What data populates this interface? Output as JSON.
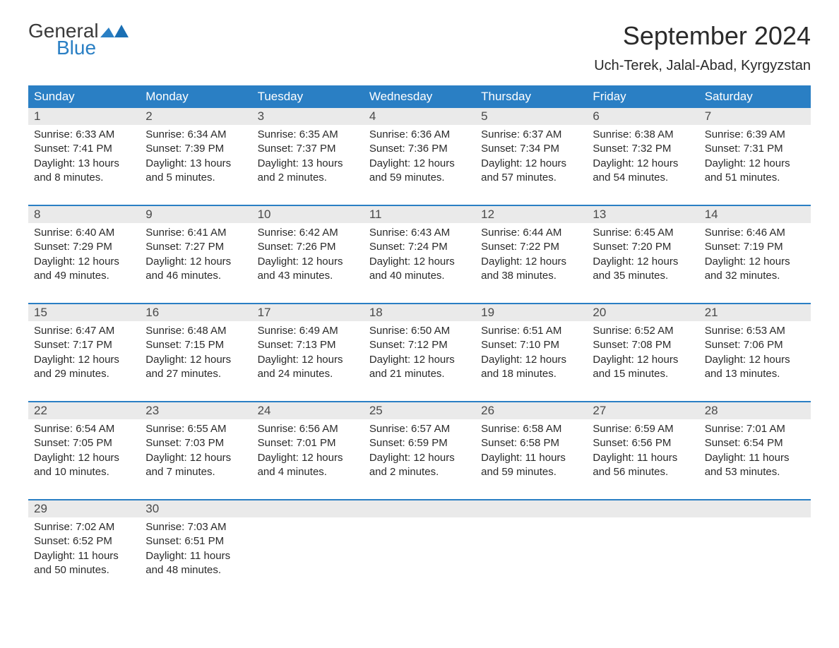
{
  "logo": {
    "text1": "General",
    "text2": "Blue"
  },
  "title": "September 2024",
  "subtitle": "Uch-Terek, Jalal-Abad, Kyrgyzstan",
  "weekdays": [
    "Sunday",
    "Monday",
    "Tuesday",
    "Wednesday",
    "Thursday",
    "Friday",
    "Saturday"
  ],
  "colors": {
    "header_bg": "#2a7fc4",
    "header_text": "#ffffff",
    "daynum_bg": "#eaeaea",
    "week_border": "#2a7fc4",
    "body_text": "#2a2a2a"
  },
  "days": [
    {
      "n": "1",
      "sunrise": "6:33 AM",
      "sunset": "7:41 PM",
      "dl1": "13 hours",
      "dl2": "8 minutes."
    },
    {
      "n": "2",
      "sunrise": "6:34 AM",
      "sunset": "7:39 PM",
      "dl1": "13 hours",
      "dl2": "5 minutes."
    },
    {
      "n": "3",
      "sunrise": "6:35 AM",
      "sunset": "7:37 PM",
      "dl1": "13 hours",
      "dl2": "2 minutes."
    },
    {
      "n": "4",
      "sunrise": "6:36 AM",
      "sunset": "7:36 PM",
      "dl1": "12 hours",
      "dl2": "59 minutes."
    },
    {
      "n": "5",
      "sunrise": "6:37 AM",
      "sunset": "7:34 PM",
      "dl1": "12 hours",
      "dl2": "57 minutes."
    },
    {
      "n": "6",
      "sunrise": "6:38 AM",
      "sunset": "7:32 PM",
      "dl1": "12 hours",
      "dl2": "54 minutes."
    },
    {
      "n": "7",
      "sunrise": "6:39 AM",
      "sunset": "7:31 PM",
      "dl1": "12 hours",
      "dl2": "51 minutes."
    },
    {
      "n": "8",
      "sunrise": "6:40 AM",
      "sunset": "7:29 PM",
      "dl1": "12 hours",
      "dl2": "49 minutes."
    },
    {
      "n": "9",
      "sunrise": "6:41 AM",
      "sunset": "7:27 PM",
      "dl1": "12 hours",
      "dl2": "46 minutes."
    },
    {
      "n": "10",
      "sunrise": "6:42 AM",
      "sunset": "7:26 PM",
      "dl1": "12 hours",
      "dl2": "43 minutes."
    },
    {
      "n": "11",
      "sunrise": "6:43 AM",
      "sunset": "7:24 PM",
      "dl1": "12 hours",
      "dl2": "40 minutes."
    },
    {
      "n": "12",
      "sunrise": "6:44 AM",
      "sunset": "7:22 PM",
      "dl1": "12 hours",
      "dl2": "38 minutes."
    },
    {
      "n": "13",
      "sunrise": "6:45 AM",
      "sunset": "7:20 PM",
      "dl1": "12 hours",
      "dl2": "35 minutes."
    },
    {
      "n": "14",
      "sunrise": "6:46 AM",
      "sunset": "7:19 PM",
      "dl1": "12 hours",
      "dl2": "32 minutes."
    },
    {
      "n": "15",
      "sunrise": "6:47 AM",
      "sunset": "7:17 PM",
      "dl1": "12 hours",
      "dl2": "29 minutes."
    },
    {
      "n": "16",
      "sunrise": "6:48 AM",
      "sunset": "7:15 PM",
      "dl1": "12 hours",
      "dl2": "27 minutes."
    },
    {
      "n": "17",
      "sunrise": "6:49 AM",
      "sunset": "7:13 PM",
      "dl1": "12 hours",
      "dl2": "24 minutes."
    },
    {
      "n": "18",
      "sunrise": "6:50 AM",
      "sunset": "7:12 PM",
      "dl1": "12 hours",
      "dl2": "21 minutes."
    },
    {
      "n": "19",
      "sunrise": "6:51 AM",
      "sunset": "7:10 PM",
      "dl1": "12 hours",
      "dl2": "18 minutes."
    },
    {
      "n": "20",
      "sunrise": "6:52 AM",
      "sunset": "7:08 PM",
      "dl1": "12 hours",
      "dl2": "15 minutes."
    },
    {
      "n": "21",
      "sunrise": "6:53 AM",
      "sunset": "7:06 PM",
      "dl1": "12 hours",
      "dl2": "13 minutes."
    },
    {
      "n": "22",
      "sunrise": "6:54 AM",
      "sunset": "7:05 PM",
      "dl1": "12 hours",
      "dl2": "10 minutes."
    },
    {
      "n": "23",
      "sunrise": "6:55 AM",
      "sunset": "7:03 PM",
      "dl1": "12 hours",
      "dl2": "7 minutes."
    },
    {
      "n": "24",
      "sunrise": "6:56 AM",
      "sunset": "7:01 PM",
      "dl1": "12 hours",
      "dl2": "4 minutes."
    },
    {
      "n": "25",
      "sunrise": "6:57 AM",
      "sunset": "6:59 PM",
      "dl1": "12 hours",
      "dl2": "2 minutes."
    },
    {
      "n": "26",
      "sunrise": "6:58 AM",
      "sunset": "6:58 PM",
      "dl1": "11 hours",
      "dl2": "59 minutes."
    },
    {
      "n": "27",
      "sunrise": "6:59 AM",
      "sunset": "6:56 PM",
      "dl1": "11 hours",
      "dl2": "56 minutes."
    },
    {
      "n": "28",
      "sunrise": "7:01 AM",
      "sunset": "6:54 PM",
      "dl1": "11 hours",
      "dl2": "53 minutes."
    },
    {
      "n": "29",
      "sunrise": "7:02 AM",
      "sunset": "6:52 PM",
      "dl1": "11 hours",
      "dl2": "50 minutes."
    },
    {
      "n": "30",
      "sunrise": "7:03 AM",
      "sunset": "6:51 PM",
      "dl1": "11 hours",
      "dl2": "48 minutes."
    }
  ],
  "labels": {
    "sunrise_prefix": "Sunrise: ",
    "sunset_prefix": "Sunset: ",
    "daylight_prefix": "Daylight: ",
    "and": "and "
  },
  "layout": {
    "start_offset": 0,
    "total_cells": 35
  }
}
